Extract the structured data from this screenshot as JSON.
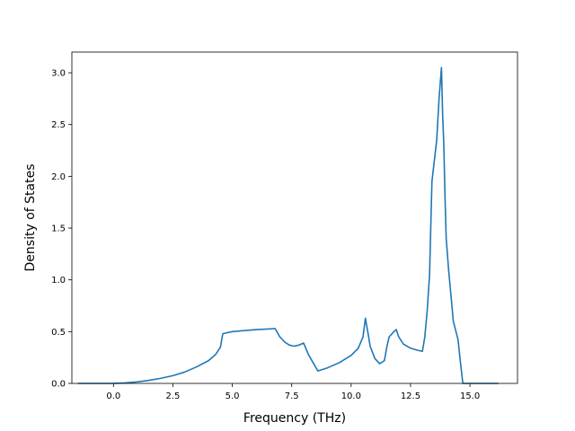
{
  "chart_data": {
    "type": "line",
    "title": "",
    "xlabel": "Frequency (THz)",
    "ylabel": "Density of States",
    "xlim": [
      -1.75,
      17.0
    ],
    "ylim": [
      0.0,
      3.2
    ],
    "grid": false,
    "x_ticks": [
      0.0,
      2.5,
      5.0,
      7.5,
      10.0,
      12.5,
      15.0
    ],
    "x_tick_labels": [
      "0.0",
      "2.5",
      "5.0",
      "7.5",
      "10.0",
      "12.5",
      "15.0"
    ],
    "y_ticks": [
      0.0,
      0.5,
      1.0,
      1.5,
      2.0,
      2.5,
      3.0
    ],
    "y_tick_labels": [
      "0.0",
      "0.5",
      "1.0",
      "1.5",
      "2.0",
      "2.5",
      "3.0"
    ],
    "series": [
      {
        "color": "#1f77b4",
        "x": [
          -1.5,
          0.0,
          0.5,
          1.0,
          1.5,
          2.0,
          2.5,
          3.0,
          3.5,
          4.0,
          4.3,
          4.5,
          4.6,
          5.0,
          5.5,
          6.0,
          6.5,
          6.8,
          7.0,
          7.2,
          7.4,
          7.6,
          7.8,
          8.0,
          8.2,
          8.4,
          8.6,
          9.0,
          9.5,
          10.0,
          10.3,
          10.5,
          10.6,
          10.7,
          10.8,
          11.0,
          11.2,
          11.4,
          11.5,
          11.6,
          11.8,
          11.9,
          12.0,
          12.2,
          12.5,
          12.8,
          13.0,
          13.1,
          13.2,
          13.3,
          13.4,
          13.6,
          13.7,
          13.8,
          13.85,
          13.9,
          13.95,
          14.0,
          14.1,
          14.3,
          14.5,
          14.6,
          14.7,
          14.75,
          15.0,
          16.2
        ],
        "y": [
          0.0,
          0.0,
          0.005,
          0.015,
          0.03,
          0.05,
          0.075,
          0.11,
          0.16,
          0.22,
          0.28,
          0.35,
          0.48,
          0.5,
          0.51,
          0.52,
          0.525,
          0.53,
          0.45,
          0.4,
          0.37,
          0.36,
          0.37,
          0.39,
          0.28,
          0.2,
          0.12,
          0.15,
          0.2,
          0.27,
          0.34,
          0.45,
          0.63,
          0.5,
          0.36,
          0.24,
          0.19,
          0.22,
          0.35,
          0.45,
          0.5,
          0.52,
          0.45,
          0.38,
          0.34,
          0.32,
          0.31,
          0.45,
          0.7,
          1.05,
          1.95,
          2.35,
          2.75,
          3.05,
          2.6,
          2.3,
          1.8,
          1.4,
          1.1,
          0.6,
          0.42,
          0.2,
          0.0,
          0.0,
          0.0,
          0.0
        ]
      }
    ]
  }
}
